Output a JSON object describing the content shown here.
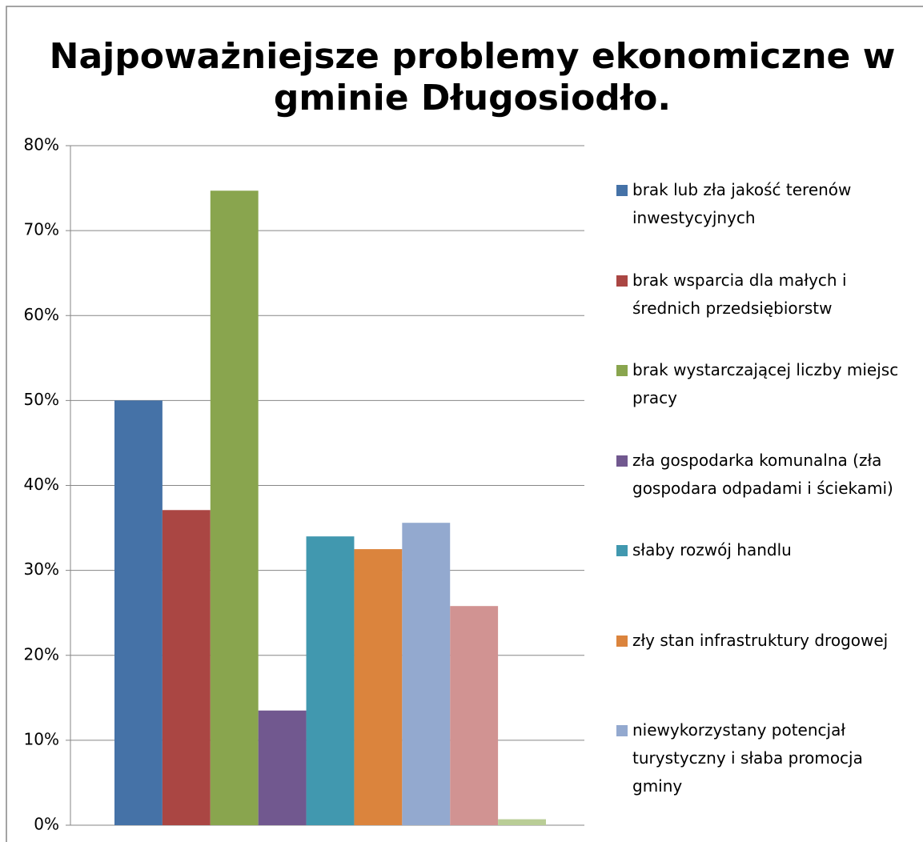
{
  "chart_data": {
    "type": "bar",
    "title": "Najpoważniejsze problemy ekonomiczne w gminie Długosiodło.",
    "series": [
      {
        "name": "brak lub zła jakość terenów inwestycyjnych",
        "color": "#4572a7",
        "values": [
          50.0
        ]
      },
      {
        "name": "brak wsparcia dla małych i średnich przedsiębiorstw",
        "color": "#aa4643",
        "values": [
          37.1
        ]
      },
      {
        "name": "brak wystarczającej liczby miejsc pracy",
        "color": "#89a54e",
        "values": [
          74.7
        ]
      },
      {
        "name": "zła gospodarka komunalna (zła gospodara odpadami i ściekami)",
        "color": "#71588f",
        "values": [
          13.5
        ]
      },
      {
        "name": "słaby rozwój handlu",
        "color": "#4198af",
        "values": [
          34.0
        ]
      },
      {
        "name": "zły stan infrastruktury drogowej",
        "color": "#db843d",
        "values": [
          32.5
        ]
      },
      {
        "name": "niewykorzystany potencjał turystyczny i słaba promocja gminy",
        "color": "#93a9cf",
        "values": [
          35.6
        ]
      },
      {
        "color": "#d19392",
        "values": [
          25.8
        ]
      },
      {
        "color": "#b9cd96",
        "values": [
          0.7
        ]
      }
    ],
    "ylim": [
      0,
      80
    ],
    "yticks": [
      {
        "value": 0,
        "label": "0%"
      },
      {
        "value": 10,
        "label": "10%"
      },
      {
        "value": 20,
        "label": "20%"
      },
      {
        "value": 30,
        "label": "30%"
      },
      {
        "value": 40,
        "label": "40%"
      },
      {
        "value": 50,
        "label": "50%"
      },
      {
        "value": 60,
        "label": "60%"
      },
      {
        "value": 70,
        "label": "70%"
      },
      {
        "value": 80,
        "label": "80%"
      }
    ],
    "grid": true
  }
}
